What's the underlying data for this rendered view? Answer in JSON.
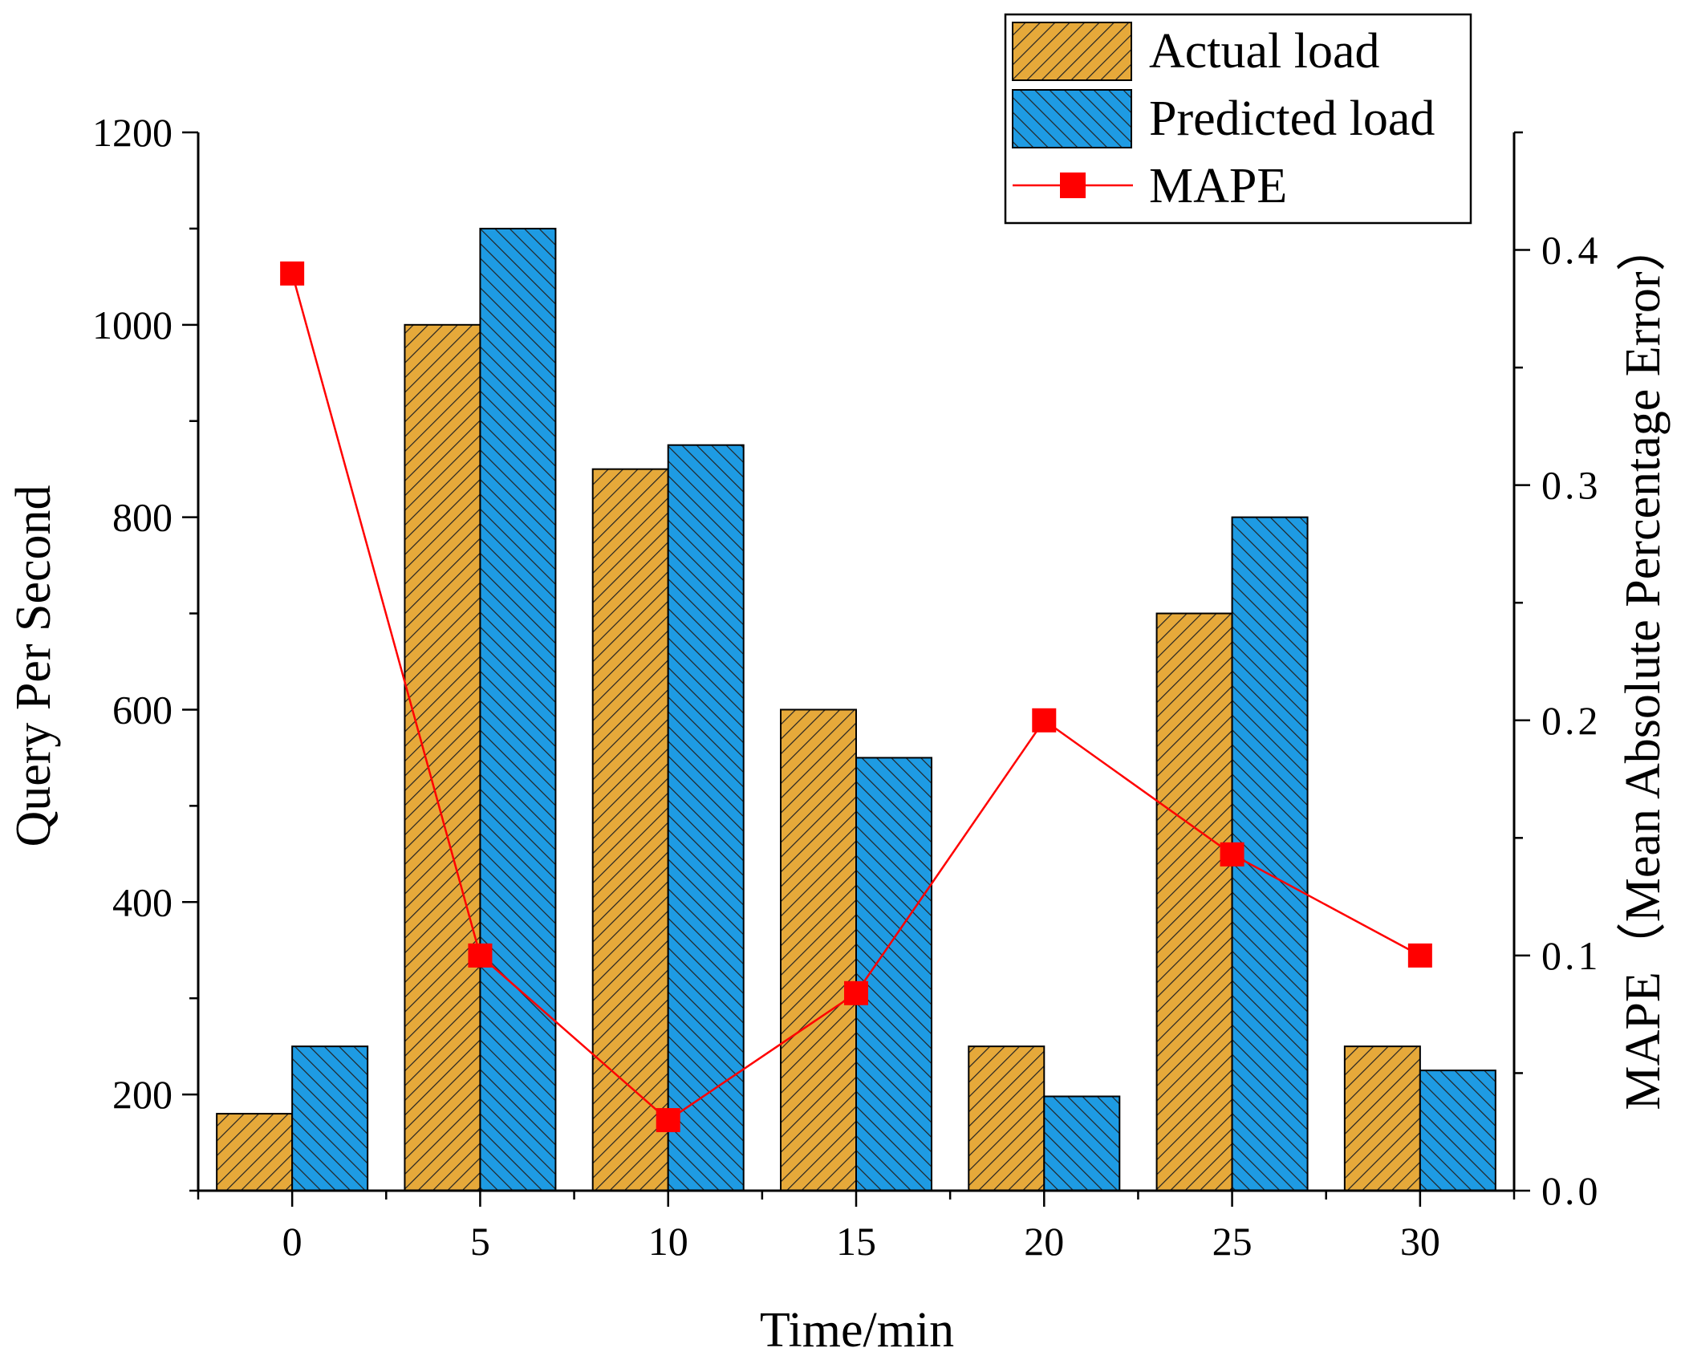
{
  "chart_data": {
    "type": "bar",
    "xlabel": "Time/min",
    "ylabel": "Query Per Second",
    "y2label": "MAPE（Mean Absolute Percentage Error）",
    "categories": [
      "0",
      "5",
      "10",
      "15",
      "20",
      "25",
      "30"
    ],
    "ylim": [
      100,
      1200
    ],
    "y2lim": [
      0.0,
      0.45
    ],
    "yticks": [
      "200",
      "400",
      "600",
      "800",
      "1000",
      "1200"
    ],
    "y2ticks": [
      "0.0",
      "0.1",
      "0.2",
      "0.3",
      "0.4"
    ],
    "legend_position": "top-right",
    "series": [
      {
        "name": "Actual load",
        "kind": "bar",
        "axis": "left",
        "color": "#E6A93A",
        "values": [
          180,
          1000,
          850,
          600,
          250,
          700,
          250
        ]
      },
      {
        "name": "Predicted load",
        "kind": "bar",
        "axis": "left",
        "color": "#1E9BE3",
        "values": [
          250,
          1100,
          875,
          550,
          198,
          800,
          225
        ]
      },
      {
        "name": "MAPE",
        "kind": "line",
        "axis": "right",
        "color": "#FF0000",
        "values": [
          0.39,
          0.1,
          0.03,
          0.084,
          0.2,
          0.143,
          0.1
        ]
      }
    ]
  }
}
